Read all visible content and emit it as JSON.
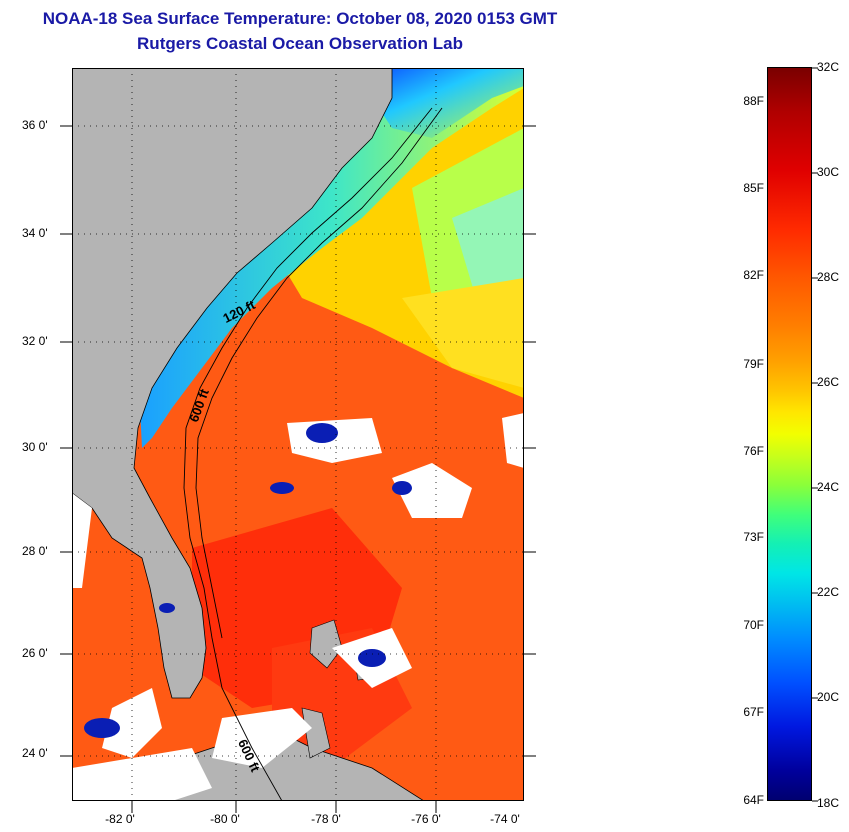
{
  "title": {
    "line1": "NOAA-18 Sea Surface Temperature:  October 08, 2020 0153 GMT",
    "line2": "Rutgers Coastal Ocean Observation Lab"
  },
  "map": {
    "lat_labels": [
      "36 0'",
      "34 0'",
      "32 0'",
      "30 0'",
      "28 0'",
      "26 0'",
      "24 0'"
    ],
    "lon_labels": [
      "-82 0'",
      "-80 0'",
      "-78 0'",
      "-76 0'",
      "-74 0'"
    ],
    "isobaths": [
      "120 ft",
      "600 ft",
      "600 ft"
    ],
    "colors": {
      "land": "#b4b4b4",
      "cloud": "#ffffff",
      "coastline": "#000000"
    }
  },
  "colorbar": {
    "fahrenheit": [
      "88F",
      "85F",
      "82F",
      "79F",
      "76F",
      "73F",
      "70F",
      "67F",
      "64F"
    ],
    "celsius": [
      "32C",
      "30C",
      "28C",
      "26C",
      "24C",
      "22C",
      "20C",
      "18C"
    ],
    "range_c": [
      18,
      32
    ],
    "range_f": [
      64,
      89.6
    ]
  }
}
